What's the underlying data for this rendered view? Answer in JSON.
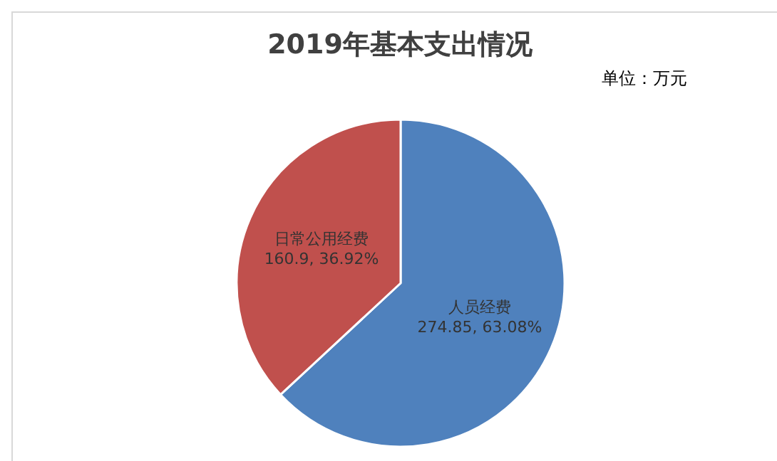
{
  "chart_data": {
    "type": "pie",
    "title": "2019年基本支出情况",
    "annotations": [
      "单位：万元"
    ],
    "categories": [
      "人员经费",
      "日常公用经费"
    ],
    "values": [
      274.85,
      160.9
    ],
    "colors": [
      "#4f81bd",
      "#c0504d"
    ],
    "value_labels": [
      "274.85, 63.08%",
      "160.9, 36.92%"
    ],
    "legend": false
  }
}
